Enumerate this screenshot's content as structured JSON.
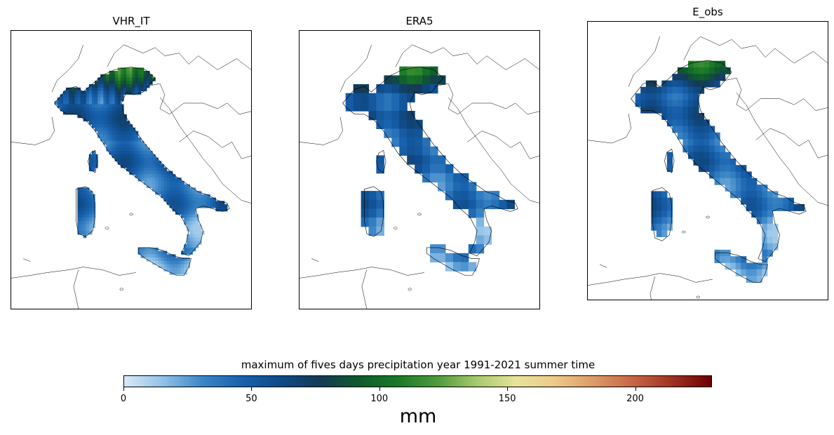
{
  "panels": [
    {
      "title": "VHR_IT",
      "style": "fine"
    },
    {
      "title": "ERA5",
      "style": "coarse"
    },
    {
      "title": "E_obs",
      "style": "medium"
    }
  ],
  "colorbar": {
    "title": "maximum of fives days precipitation year 1991-2021 summer time",
    "unit": "mm",
    "range": [
      0,
      230
    ],
    "ticks": [
      {
        "value": 0,
        "label": "0"
      },
      {
        "value": 50,
        "label": "50"
      },
      {
        "value": 100,
        "label": "100"
      },
      {
        "value": 150,
        "label": "150"
      },
      {
        "value": 200,
        "label": "200"
      }
    ],
    "colors": [
      "#dbe9f6",
      "#8fc0e8",
      "#3b86c7",
      "#1861ad",
      "#0f4a87",
      "#143a57",
      "#0f5a2c",
      "#1a7a26",
      "#4e9a3c",
      "#a6c96c",
      "#e8e39a",
      "#eec98a",
      "#dc9a66",
      "#c66545",
      "#a13222",
      "#6b0000"
    ]
  }
}
